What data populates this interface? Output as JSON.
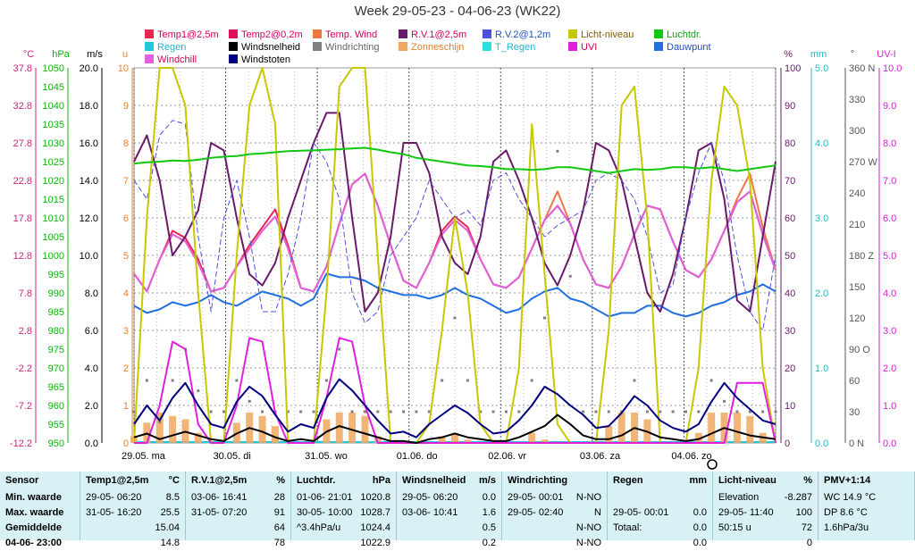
{
  "title": "Week 29-05-23 - 04-06-23 (WK22)",
  "legend": [
    {
      "label": "Temp1@2,5m",
      "color": "#e8254f"
    },
    {
      "label": "Temp2@0,2m",
      "color": "#e0105c"
    },
    {
      "label": "Temp. Wind",
      "color": "#f07840"
    },
    {
      "label": "R.V.1@2,5m",
      "color": "#6a1a6a"
    },
    {
      "label": "R.V.2@1,2m",
      "color": "#5050e0"
    },
    {
      "label": "Licht-niveau",
      "color": "#c8c800"
    },
    {
      "label": "Luchtdr.",
      "color": "#10c810"
    },
    {
      "label": "Regen",
      "color": "#20c8d8"
    },
    {
      "label": "Windsnelheid",
      "color": "#000000"
    },
    {
      "label": "Windrichting",
      "color": "#808080"
    },
    {
      "label": "Zonneschijn",
      "color": "#f0a860"
    },
    {
      "label": "T_Regen",
      "color": "#30e0e0"
    },
    {
      "label": "UVI",
      "color": "#e020e0"
    },
    {
      "label": "Dauwpunt",
      "color": "#2070e0"
    },
    {
      "label": "Windchill",
      "color": "#e060e0"
    },
    {
      "label": "Windstoten",
      "color": "#000080"
    }
  ],
  "axis_units": [
    "°C",
    "hPa",
    "m/s",
    "u",
    "%",
    "mm",
    "°",
    "UV-I"
  ],
  "chart_data": {
    "type": "line",
    "x_labels": [
      "29.05. ma",
      "30.05. di",
      "31.05. wo",
      "01.06. do",
      "02.06. vr",
      "03.06. za",
      "04.06. zo"
    ],
    "grid": true,
    "axes": {
      "temp_c": {
        "ticks": [
          "37.8",
          "32.8",
          "27.8",
          "22.8",
          "17.8",
          "12.8",
          "7.8",
          "2.8",
          "-2.2",
          "-7.2",
          "-12.2"
        ],
        "range": [
          -12.2,
          40.3
        ]
      },
      "pressure_hpa": {
        "ticks": [
          "1050",
          "1045",
          "1040",
          "1035",
          "1030",
          "1025",
          "1020",
          "1015",
          "1010",
          "1005",
          "1000",
          "995",
          "990",
          "985",
          "980",
          "975",
          "970",
          "965",
          "960",
          "955",
          "950"
        ],
        "range": [
          950,
          1050
        ]
      },
      "wind_ms": {
        "ticks": [
          "20.0",
          "18.0",
          "16.0",
          "14.0",
          "12.0",
          "10.0",
          "8.0",
          "6.0",
          "4.0",
          "2.0",
          "0.0"
        ],
        "range": [
          0,
          20
        ]
      },
      "sun_hours": {
        "ticks": [
          "10",
          "9",
          "8",
          "7",
          "6",
          "5",
          "4",
          "3",
          "2",
          "1",
          "0"
        ],
        "range": [
          0,
          10
        ]
      },
      "humidity_pct": {
        "ticks": [
          "100",
          "90",
          "80",
          "70",
          "60",
          "50",
          "40",
          "30",
          "20",
          "10",
          "0"
        ],
        "range": [
          0,
          100
        ]
      },
      "rain_mm": {
        "ticks": [
          "5.0",
          "4.0",
          "3.0",
          "2.0",
          "1.0",
          "0.0"
        ],
        "range": [
          0,
          5
        ]
      },
      "wind_dir_deg": {
        "ticks": [
          "360 N",
          "330",
          "300",
          "270 W",
          "240",
          "210",
          "180 Z",
          "150",
          "120",
          "90 O",
          "60",
          "30",
          "0 N"
        ],
        "range": [
          0,
          360
        ]
      },
      "uvi": {
        "ticks": [
          "10.0",
          "9.0",
          "8.0",
          "7.0",
          "6.0",
          "5.0",
          "4.0",
          "3.0",
          "2.0",
          "1.0",
          "0.0"
        ],
        "range": [
          0,
          10
        ]
      }
    },
    "series": [
      {
        "name": "Temp1@2,5m",
        "color": "#e8254f",
        "unit": "°C",
        "values": [
          11.5,
          9.0,
          13.5,
          17.5,
          16.5,
          13.5,
          9.0,
          9.5,
          12.5,
          15.5,
          18.0,
          20.5,
          15.5,
          9.5,
          9.0,
          12.5,
          18.5,
          24.0,
          25.5,
          21.0,
          15.5,
          10.5,
          9.5,
          13.0,
          17.5,
          19.5,
          18.0,
          13.5,
          10.0,
          9.5,
          11.0,
          15.0,
          19.0,
          21.0,
          18.5,
          13.5,
          10.0,
          9.5,
          12.5,
          17.0,
          21.0,
          20.5,
          16.0,
          12.0,
          11.0,
          13.5,
          17.5,
          21.5,
          23.0,
          17.0,
          12.0
        ]
      },
      {
        "name": "Temp. Wind",
        "color": "#f07840",
        "unit": "°C",
        "values": [
          11.5,
          9.0,
          13.5,
          17.0,
          16.0,
          13.0,
          9.0,
          9.5,
          12.5,
          15.0,
          17.5,
          19.5,
          15.0,
          9.5,
          9.0,
          12.5,
          18.5,
          24.0,
          25.5,
          21.0,
          15.5,
          10.5,
          9.5,
          13.0,
          17.0,
          19.0,
          17.5,
          13.5,
          10.0,
          9.5,
          11.0,
          15.0,
          19.0,
          23.0,
          18.5,
          13.5,
          10.0,
          9.5,
          12.5,
          17.0,
          21.0,
          20.5,
          16.0,
          12.0,
          11.0,
          13.5,
          17.5,
          22.0,
          25.5,
          18.0,
          12.0
        ]
      },
      {
        "name": "Dauwpunt",
        "color": "#2070e0",
        "unit": "°C",
        "values": [
          7.0,
          6.0,
          6.5,
          7.5,
          7.0,
          7.5,
          8.5,
          7.5,
          7.0,
          8.0,
          9.0,
          8.5,
          8.0,
          7.0,
          8.0,
          11.5,
          11.0,
          11.0,
          10.5,
          9.5,
          9.0,
          8.5,
          8.5,
          8.0,
          8.5,
          9.5,
          8.5,
          8.0,
          7.0,
          6.0,
          6.5,
          8.0,
          9.0,
          9.5,
          8.0,
          7.5,
          6.5,
          5.5,
          6.0,
          6.0,
          7.0,
          7.0,
          6.0,
          5.5,
          6.0,
          7.0,
          7.5,
          8.5,
          9.0,
          10.0,
          9.0
        ]
      },
      {
        "name": "Windchill",
        "color": "#e060e0",
        "unit": "°C",
        "values": [
          11.5,
          9.0,
          13.5,
          17.0,
          16.0,
          13.0,
          9.0,
          9.5,
          12.5,
          15.0,
          17.5,
          19.5,
          15.0,
          9.5,
          9.0,
          12.5,
          18.5,
          24.0,
          25.5,
          21.0,
          15.5,
          10.5,
          9.5,
          13.0,
          17.0,
          19.0,
          17.5,
          13.5,
          10.0,
          9.5,
          11.0,
          15.0,
          19.0,
          21.0,
          18.5,
          13.5,
          10.0,
          9.5,
          12.5,
          17.0,
          21.0,
          20.5,
          16.0,
          12.0,
          11.0,
          13.5,
          17.5,
          21.5,
          23.0,
          17.0,
          12.0
        ]
      },
      {
        "name": "R.V.1@2,5m",
        "color": "#6a1a6a",
        "unit": "%",
        "values": [
          75,
          82,
          70,
          50,
          55,
          62,
          80,
          78,
          60,
          45,
          42,
          48,
          60,
          70,
          80,
          88,
          88,
          60,
          35,
          40,
          55,
          80,
          80,
          72,
          55,
          48,
          45,
          55,
          75,
          78,
          70,
          60,
          48,
          42,
          50,
          62,
          80,
          78,
          70,
          55,
          40,
          35,
          45,
          60,
          78,
          80,
          65,
          38,
          35,
          55,
          75
        ]
      },
      {
        "name": "R.V.2@1,2m",
        "color": "#5050e0",
        "unit": "%",
        "values": [
          70,
          65,
          82,
          86,
          85,
          55,
          35,
          60,
          70,
          55,
          35,
          35,
          45,
          60,
          80,
          75,
          65,
          40,
          32,
          35,
          50,
          55,
          60,
          70,
          65,
          60,
          62,
          58,
          70,
          72,
          65,
          60,
          55,
          58,
          60,
          62,
          70,
          72,
          70,
          65,
          55,
          40,
          42,
          60,
          72,
          80,
          70,
          50,
          35,
          30,
          50
        ]
      },
      {
        "name": "Licht-niveau",
        "color": "#c8c800",
        "unit": "%",
        "values": [
          0,
          60,
          100,
          100,
          90,
          40,
          0,
          0,
          50,
          90,
          100,
          85,
          0,
          0,
          0,
          40,
          95,
          100,
          100,
          50,
          0,
          0,
          0,
          5,
          30,
          60,
          40,
          5,
          0,
          0,
          20,
          85,
          45,
          5,
          0,
          0,
          0,
          30,
          90,
          95,
          60,
          0,
          0,
          0,
          20,
          70,
          95,
          90,
          70,
          20,
          0
        ]
      },
      {
        "name": "Luchtdr.",
        "color": "#10c810",
        "unit": "hPa",
        "values": [
          1024.5,
          1024.8,
          1025.0,
          1025.3,
          1025.2,
          1025.5,
          1026.0,
          1026.3,
          1026.5,
          1027.0,
          1027.2,
          1027.5,
          1027.8,
          1027.9,
          1028.0,
          1028.2,
          1028.3,
          1028.5,
          1028.7,
          1028.2,
          1027.5,
          1027.0,
          1026.0,
          1025.5,
          1025.0,
          1024.5,
          1024.0,
          1023.8,
          1023.5,
          1023.0,
          1023.0,
          1022.8,
          1023.0,
          1023.5,
          1023.5,
          1023.0,
          1022.5,
          1022.0,
          1022.5,
          1023.0,
          1022.8,
          1023.0,
          1023.5,
          1023.5,
          1023.2,
          1023.5,
          1023.0,
          1022.5,
          1023.0,
          1023.5,
          1024.0
        ]
      },
      {
        "name": "UVI",
        "color": "#e020e0",
        "unit": "UV-I",
        "values": [
          0,
          0,
          1.0,
          2.7,
          2.5,
          0.5,
          0,
          0,
          1.0,
          2.8,
          2.7,
          0.8,
          0,
          0,
          0,
          1.2,
          2.8,
          2.7,
          1.0,
          0,
          0,
          0,
          0,
          0,
          0,
          0,
          0,
          0,
          0,
          0,
          0,
          0,
          0,
          0,
          0,
          0,
          0,
          0,
          0,
          0,
          0,
          0,
          0,
          0,
          0,
          0,
          0,
          1.6,
          1.6,
          1.6,
          0
        ]
      },
      {
        "name": "Windsnelheid",
        "color": "#000000",
        "unit": "m/s",
        "values": [
          0.3,
          0.5,
          0.2,
          0.4,
          0.6,
          0.4,
          0.2,
          0.1,
          0.5,
          0.8,
          0.6,
          0.3,
          0.1,
          0.2,
          0.1,
          0.6,
          0.9,
          0.7,
          0.5,
          0.3,
          0.1,
          0.1,
          0.0,
          0.2,
          0.3,
          0.5,
          0.3,
          0.2,
          0.1,
          0.1,
          0.3,
          0.6,
          0.9,
          1.5,
          1.0,
          0.4,
          0.2,
          0.2,
          0.4,
          0.8,
          0.6,
          0.3,
          0.2,
          0.1,
          0.2,
          0.5,
          0.8,
          0.6,
          0.4,
          0.3,
          0.2
        ]
      },
      {
        "name": "Windstoten",
        "color": "#000080",
        "unit": "m/s",
        "values": [
          1.0,
          2.0,
          1.2,
          2.4,
          3.2,
          2.0,
          1.0,
          0.8,
          2.2,
          3.0,
          2.5,
          1.5,
          0.6,
          1.0,
          0.8,
          2.4,
          3.4,
          2.8,
          2.0,
          1.2,
          0.5,
          0.6,
          0.3,
          1.0,
          1.5,
          2.0,
          1.6,
          1.0,
          0.5,
          0.6,
          1.2,
          2.0,
          3.0,
          2.6,
          2.0,
          1.5,
          0.8,
          0.9,
          1.6,
          2.5,
          2.0,
          1.2,
          0.8,
          0.6,
          1.0,
          2.2,
          3.2,
          2.4,
          1.8,
          1.2,
          1.0
        ]
      }
    ],
    "zonneschijn_u": [
      0.2,
      0.6,
      0.9,
      0.8,
      0.7,
      0.3,
      0,
      0,
      0.6,
      0.9,
      0.8,
      0.5,
      0,
      0,
      0,
      0.7,
      0.9,
      0.9,
      0.8,
      0.2,
      0,
      0,
      0,
      0,
      0.2,
      0.3,
      0.1,
      0,
      0,
      0,
      0,
      0.3,
      0.1,
      0,
      0,
      0,
      0,
      0.5,
      0.9,
      0.9,
      0.7,
      0,
      0,
      0,
      0.3,
      0.9,
      0.9,
      0.9,
      0.8,
      0.3,
      0
    ],
    "regen_mm": [
      0,
      0,
      0,
      0,
      0,
      0,
      0,
      0,
      0,
      0,
      0,
      0,
      0,
      0,
      0,
      0,
      0,
      0,
      0,
      0,
      0,
      0,
      0,
      0,
      0,
      0,
      0,
      0,
      0,
      0,
      0,
      0,
      0,
      0,
      0,
      0,
      0,
      0,
      0,
      0,
      0,
      0,
      0,
      0,
      0,
      0,
      0,
      0,
      0,
      0,
      0
    ],
    "windrichting_deg": [
      30,
      60,
      20,
      60,
      90,
      50,
      30,
      30,
      60,
      40,
      30,
      30,
      30,
      30,
      30,
      60,
      90,
      30,
      30,
      30,
      30,
      30,
      30,
      30,
      60,
      120,
      60,
      30,
      30,
      30,
      30,
      60,
      120,
      280,
      160,
      30,
      30,
      30,
      30,
      60,
      30,
      30,
      30,
      30,
      30,
      60,
      40,
      30,
      30,
      30,
      30
    ]
  },
  "stats": {
    "columns": [
      {
        "header": "Sensor",
        "unit": "",
        "rows": [
          [
            "Min. waarde",
            "",
            ""
          ],
          [
            "Max. waarde",
            "",
            ""
          ],
          [
            "Gemiddelde",
            "",
            ""
          ],
          [
            "04-06- 23:00",
            "",
            ""
          ]
        ]
      },
      {
        "header": "Temp1@2,5m",
        "unit": "°C",
        "rows": [
          [
            "29-05- 06:20",
            "",
            "8.5"
          ],
          [
            "31-05- 16:20",
            "",
            "25.5"
          ],
          [
            "",
            "",
            "15.04"
          ],
          [
            "",
            "",
            "14.8"
          ]
        ]
      },
      {
        "header": "R.V.1@2,5m",
        "unit": "%",
        "rows": [
          [
            "03-06- 16:41",
            "",
            "28"
          ],
          [
            "31-05- 07:20",
            "",
            "91"
          ],
          [
            "",
            "",
            "64"
          ],
          [
            "",
            "",
            "78"
          ]
        ]
      },
      {
        "header": "Luchtdr.",
        "unit": "hPa",
        "rows": [
          [
            "01-06- 21:01",
            "",
            "1020.8"
          ],
          [
            "30-05- 10:00",
            "",
            "1028.7"
          ],
          [
            "^3.4hPa/u",
            "",
            "1024.4"
          ],
          [
            "",
            "",
            "1022.9"
          ]
        ]
      },
      {
        "header": "Windsnelheid",
        "unit": "m/s",
        "rows": [
          [
            "29-05- 06:20",
            "",
            "0.0"
          ],
          [
            "03-06- 10:41",
            "",
            "1.6"
          ],
          [
            "",
            "",
            "0.5"
          ],
          [
            "",
            "",
            "0.2"
          ]
        ]
      },
      {
        "header": "Windrichting",
        "unit": "",
        "rows": [
          [
            "29-05- 00:01",
            "",
            "N-NO"
          ],
          [
            "29-05- 02:40",
            "",
            "N"
          ],
          [
            "",
            "",
            "N-NO"
          ],
          [
            "",
            "",
            "N-NO"
          ]
        ]
      },
      {
        "header": "Regen",
        "unit": "mm",
        "rows": [
          [
            "",
            "",
            ""
          ],
          [
            "29-05- 00:01",
            "",
            "0.0"
          ],
          [
            "Totaal:",
            "",
            "0.0"
          ],
          [
            "",
            "",
            "0.0"
          ]
        ]
      },
      {
        "header": "Licht-niveau",
        "unit": "%",
        "rows": [
          [
            "Elevation",
            "",
            "-8.287"
          ],
          [
            "29-05- 11:40",
            "",
            "100"
          ],
          [
            "50:15 u",
            "",
            "72"
          ],
          [
            "",
            "",
            "0"
          ]
        ]
      },
      {
        "header": "PMV+1:14",
        "unit": "",
        "rows": [
          [
            "WC 14.9 °C",
            "",
            ""
          ],
          [
            "DP 8.6 °C",
            "",
            ""
          ],
          [
            "1.6hPa/3u",
            "",
            ""
          ],
          [
            "",
            "",
            ""
          ]
        ]
      }
    ]
  }
}
